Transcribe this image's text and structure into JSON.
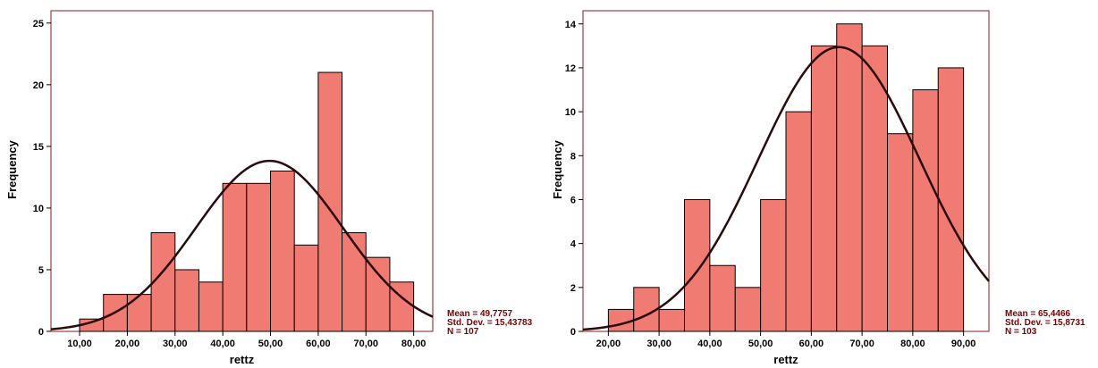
{
  "chart_data": [
    {
      "type": "bar",
      "xlabel": "rettz",
      "ylabel": "Frequency",
      "xlim": [
        4,
        84
      ],
      "ylim": [
        0,
        26
      ],
      "x_ticks": [
        "10,00",
        "20,00",
        "30,00",
        "40,00",
        "50,00",
        "60,00",
        "70,00",
        "80,00"
      ],
      "x_tick_values": [
        10,
        20,
        30,
        40,
        50,
        60,
        70,
        80
      ],
      "y_ticks": [
        "0",
        "5",
        "10",
        "15",
        "20",
        "25"
      ],
      "y_tick_values": [
        0,
        5,
        10,
        15,
        20,
        25
      ],
      "bin_width": 5,
      "bin_starts": [
        10,
        15,
        20,
        25,
        30,
        35,
        40,
        45,
        50,
        55,
        60,
        65,
        70,
        75
      ],
      "values": [
        1,
        3,
        3,
        8,
        5,
        4,
        12,
        12,
        13,
        7,
        21,
        8,
        6,
        4
      ],
      "normal_curve": {
        "mean": 49.7757,
        "std_dev": 15.43783,
        "n": 107
      },
      "stats_text": [
        "Mean = 49,7757",
        "Std. Dev. = 15,43783",
        "N = 107"
      ],
      "colors": {
        "bar": "#f07b73",
        "bar_edge": "#000000",
        "curve": "#2a0a0a",
        "frame": "#8b1a1a"
      }
    },
    {
      "type": "bar",
      "xlabel": "rettz",
      "ylabel": "Frequency",
      "xlim": [
        15,
        95
      ],
      "ylim": [
        0,
        14.6
      ],
      "x_ticks": [
        "20,00",
        "30,00",
        "40,00",
        "50,00",
        "60,00",
        "70,00",
        "80,00",
        "90,00"
      ],
      "x_tick_values": [
        20,
        30,
        40,
        50,
        60,
        70,
        80,
        90
      ],
      "y_ticks": [
        "0",
        "2",
        "4",
        "6",
        "8",
        "10",
        "12",
        "14"
      ],
      "y_tick_values": [
        0,
        2,
        4,
        6,
        8,
        10,
        12,
        14
      ],
      "bin_width": 5,
      "bin_starts": [
        20,
        25,
        30,
        35,
        40,
        45,
        50,
        55,
        60,
        65,
        70,
        75,
        80,
        85
      ],
      "values": [
        1,
        2,
        1,
        6,
        3,
        2,
        6,
        10,
        13,
        14,
        13,
        9,
        11,
        12
      ],
      "normal_curve": {
        "mean": 65.4466,
        "std_dev": 15.8731,
        "n": 103
      },
      "stats_text": [
        "Mean = 65,4466",
        "Std. Dev. = 15,8731",
        "N = 103"
      ],
      "colors": {
        "bar": "#f07b73",
        "bar_edge": "#000000",
        "curve": "#2a0a0a",
        "frame": "#8b1a1a"
      }
    }
  ]
}
